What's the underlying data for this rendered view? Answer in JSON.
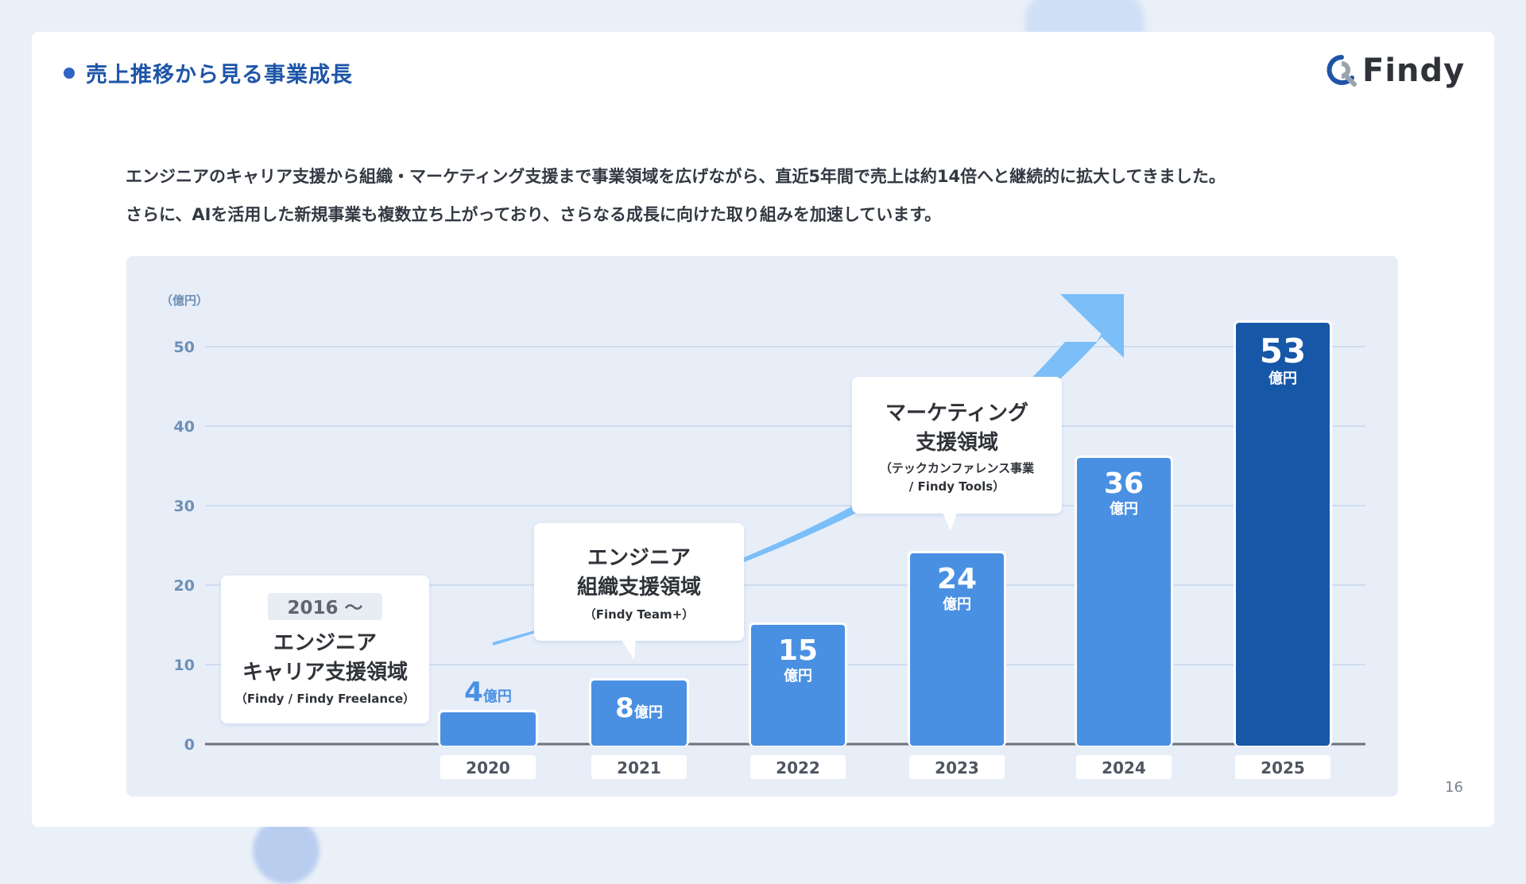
{
  "header": {
    "title": "売上推移から見る事業成長",
    "logo_text": "Findy",
    "logo_icon": "findy-logo-icon"
  },
  "description": {
    "line1": "エンジニアのキャリア支援から組織・マーケティング支援まで事業領域を広げながら、直近5年間で売上は約14倍へと継続的に拡大してきました。",
    "line2": "さらに、AIを活用した新規事業も複数立ち上がっており、さらなる成長に向けた取り組みを加速しています。"
  },
  "page_number": "16",
  "colors": {
    "title_blue": "#1e55a8",
    "bar_blue": "#4a90e2",
    "bar_highlight": "#1657a8",
    "arrow": "#7bbef8",
    "grid": "#b7cbe6",
    "axis_text": "#6e8fb5"
  },
  "chart_data": {
    "type": "bar",
    "categories": [
      "2020",
      "2021",
      "2022",
      "2023",
      "2024",
      "2025"
    ],
    "values": [
      4,
      8,
      15,
      24,
      36,
      53
    ],
    "value_labels": [
      "4",
      "8",
      "15",
      "24",
      "36",
      "53"
    ],
    "unit_label": "億円",
    "ylabel": "（億円）",
    "yticks": [
      0,
      10,
      20,
      30,
      40,
      50
    ],
    "ylim": [
      0,
      50
    ],
    "grid": true,
    "highlight_category": "2025",
    "trend_arrow": true
  },
  "callouts": [
    {
      "badge": "2016 〜",
      "title_line1": "エンジニア",
      "title_line2": "キャリア支援領域",
      "sub_line1": "（Findy / Findy Freelance）",
      "sub_line2": ""
    },
    {
      "badge": "",
      "title_line1": "エンジニア",
      "title_line2": "組織支援領域",
      "sub_line1": "（Findy Team+）",
      "sub_line2": ""
    },
    {
      "badge": "",
      "title_line1": "マーケティング",
      "title_line2": "支援領域",
      "sub_line1": "（テックカンファレンス事業",
      "sub_line2": "/ Findy Tools）"
    }
  ]
}
